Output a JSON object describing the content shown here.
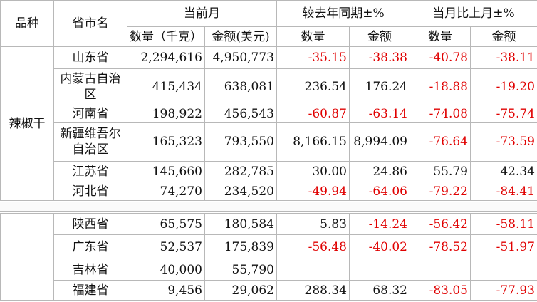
{
  "header": {
    "variety": "品种",
    "province": "省市名",
    "current_month": "当前月",
    "yoy": "较去年同期±%",
    "mom": "当月比上月±%",
    "sub": [
      "数量（千克）",
      "金额(美元)",
      "数量",
      "金额",
      "数量",
      "金额"
    ]
  },
  "table": {
    "variety": "辣椒干",
    "rows": [
      [
        "山东省",
        "2,294,616",
        "4,950,773",
        "-35.15",
        "-38.38",
        "-40.78",
        "-38.11"
      ],
      [
        "内蒙古自治区",
        "415,434",
        "638,081",
        "236.54",
        "176.24",
        "-18.88",
        "-19.20"
      ],
      [
        "河南省",
        "198,922",
        "456,543",
        "-60.87",
        "-63.14",
        "-74.08",
        "-75.74"
      ],
      [
        "新疆维吾尔自治区",
        "165,323",
        "793,550",
        "8,166.15",
        "8,994.09",
        "-76.64",
        "-73.59"
      ],
      [
        "江苏省",
        "145,660",
        "282,785",
        "30.00",
        "24.86",
        "55.79",
        "42.34"
      ],
      [
        "河北省",
        "74,270",
        "234,520",
        "-49.94",
        "-64.06",
        "-79.22",
        "-84.41"
      ],
      [
        "陕西省",
        "65,575",
        "180,584",
        "5.83",
        "-14.24",
        "-56.42",
        "-58.11"
      ],
      [
        "广东省",
        "52,537",
        "175,839",
        "-56.48",
        "-40.02",
        "-78.52",
        "-51.97"
      ],
      [
        "吉林省",
        "40,000",
        "55,790",
        null,
        null,
        null,
        null
      ],
      [
        "福建省",
        "9,456",
        "29,062",
        "288.34",
        "68.32",
        "-83.05",
        "-77.93"
      ]
    ]
  }
}
